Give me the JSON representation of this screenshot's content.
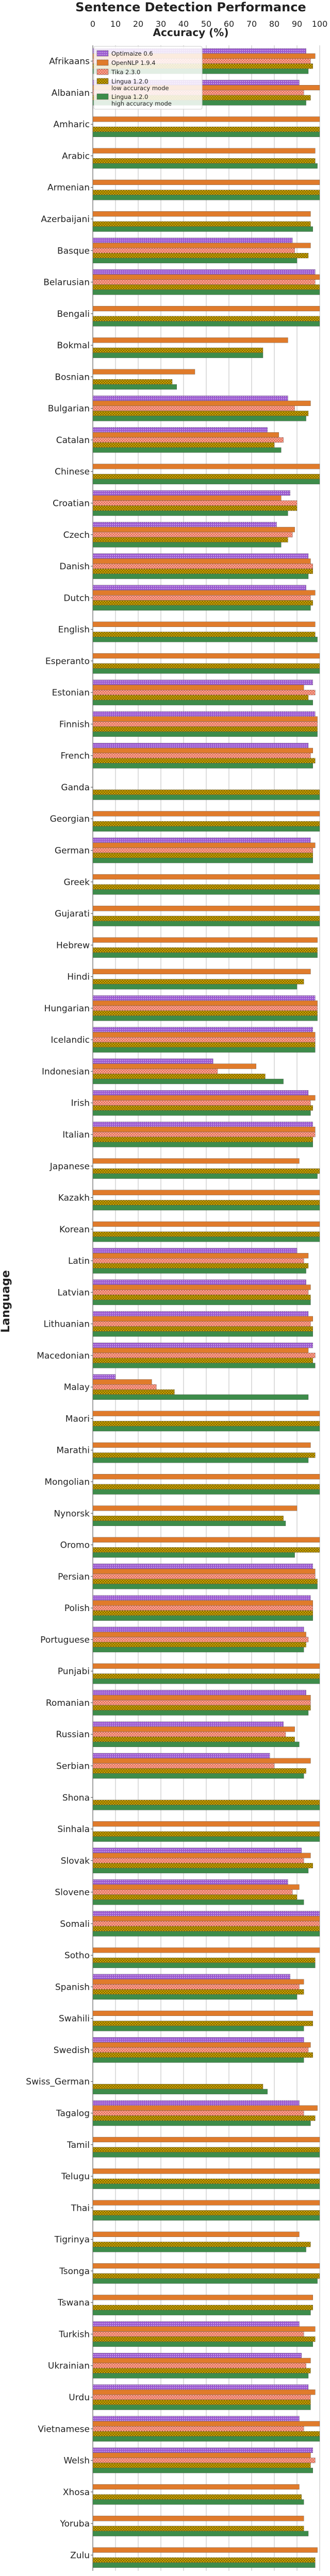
{
  "chart_data": {
    "type": "bar",
    "orientation": "horizontal",
    "title": "Sentence Detection Performance",
    "xlabel": "Accuracy (%)",
    "ylabel": "Language",
    "xlim": [
      0,
      100
    ],
    "xticks": [
      0,
      10,
      20,
      30,
      40,
      50,
      60,
      70,
      80,
      90,
      100
    ],
    "grid": true,
    "legend_position": "top-left",
    "categories": [
      "Afrikaans",
      "Albanian",
      "Amharic",
      "Arabic",
      "Armenian",
      "Azerbaijani",
      "Basque",
      "Belarusian",
      "Bengali",
      "Bokmal",
      "Bosnian",
      "Bulgarian",
      "Catalan",
      "Chinese",
      "Croatian",
      "Czech",
      "Danish",
      "Dutch",
      "English",
      "Esperanto",
      "Estonian",
      "Finnish",
      "French",
      "Ganda",
      "Georgian",
      "German",
      "Greek",
      "Gujarati",
      "Hebrew",
      "Hindi",
      "Hungarian",
      "Icelandic",
      "Indonesian",
      "Irish",
      "Italian",
      "Japanese",
      "Kazakh",
      "Korean",
      "Latin",
      "Latvian",
      "Lithuanian",
      "Macedonian",
      "Malay",
      "Maori",
      "Marathi",
      "Mongolian",
      "Nynorsk",
      "Oromo",
      "Persian",
      "Polish",
      "Portuguese",
      "Punjabi",
      "Romanian",
      "Russian",
      "Serbian",
      "Shona",
      "Sinhala",
      "Slovak",
      "Slovene",
      "Somali",
      "Sotho",
      "Spanish",
      "Swahili",
      "Swedish",
      "Swiss_German",
      "Tagalog",
      "Tamil",
      "Telugu",
      "Thai",
      "Tigrinya",
      "Tsonga",
      "Tswana",
      "Turkish",
      "Ukrainian",
      "Urdu",
      "Vietnamese",
      "Welsh",
      "Xhosa",
      "Yoruba",
      "Zulu"
    ],
    "series": [
      {
        "name": "Optimaize 0.6",
        "color": "#9b59d0",
        "pattern": "dots",
        "values": [
          94,
          91,
          0,
          0,
          0,
          0,
          88,
          98,
          0,
          0,
          0,
          86,
          77,
          0,
          87,
          81,
          95,
          94,
          0,
          0,
          97,
          98,
          95,
          0,
          0,
          96,
          0,
          0,
          0,
          0,
          98,
          97,
          53,
          95,
          97,
          0,
          0,
          0,
          90,
          94,
          95,
          97,
          10,
          0,
          0,
          0,
          0,
          0,
          97,
          96,
          93,
          0,
          94,
          84,
          78,
          0,
          0,
          92,
          86,
          100,
          0,
          87,
          0,
          93,
          0,
          91,
          0,
          0,
          0,
          0,
          0,
          0,
          91,
          92,
          95,
          91,
          97,
          0,
          0,
          0
        ]
      },
      {
        "name": "OpenNLP 1.9.4",
        "color": "#e07b2b",
        "pattern": "none",
        "values": [
          98,
          100,
          100,
          98,
          100,
          96,
          96,
          100,
          100,
          86,
          45,
          96,
          82,
          100,
          83,
          89,
          96,
          98,
          98,
          100,
          93,
          99,
          97,
          0,
          100,
          98,
          100,
          100,
          99,
          96,
          99,
          98,
          72,
          98,
          98,
          91,
          100,
          100,
          95,
          96,
          97,
          95,
          26,
          100,
          96,
          100,
          90,
          100,
          98,
          97,
          94,
          100,
          96,
          89,
          96,
          0,
          100,
          96,
          91,
          100,
          100,
          93,
          97,
          96,
          0,
          99,
          100,
          100,
          100,
          91,
          100,
          97,
          98,
          96,
          98,
          100,
          96,
          91,
          93,
          99
        ]
      },
      {
        "name": "Tika 2.3.0",
        "color": "#e8644a",
        "pattern": "crosshatch",
        "values": [
          96,
          93,
          0,
          0,
          0,
          0,
          89,
          98,
          0,
          0,
          0,
          89,
          84,
          0,
          90,
          88,
          97,
          96,
          0,
          0,
          98,
          99,
          96,
          0,
          0,
          97,
          0,
          0,
          0,
          0,
          99,
          98,
          55,
          96,
          98,
          0,
          0,
          0,
          93,
          95,
          96,
          98,
          28,
          0,
          0,
          0,
          0,
          0,
          98,
          97,
          95,
          0,
          96,
          85,
          80,
          0,
          0,
          93,
          88,
          100,
          0,
          91,
          0,
          95,
          0,
          93,
          0,
          0,
          0,
          0,
          0,
          0,
          93,
          94,
          96,
          93,
          98,
          0,
          0,
          0
        ]
      },
      {
        "name": "Lingua 1.2.0\nlow accuracy mode",
        "color": "#d4a800",
        "pattern": "crosshatch",
        "values": [
          97,
          96,
          100,
          98,
          100,
          96,
          95,
          100,
          100,
          75,
          35,
          95,
          80,
          100,
          90,
          86,
          97,
          97,
          98,
          100,
          95,
          99,
          98,
          100,
          100,
          97,
          100,
          100,
          99,
          93,
          99,
          98,
          76,
          97,
          97,
          100,
          100,
          100,
          95,
          96,
          97,
          97,
          36,
          100,
          98,
          100,
          84,
          100,
          99,
          97,
          94,
          100,
          96,
          89,
          94,
          100,
          100,
          97,
          90,
          100,
          98,
          93,
          97,
          97,
          75,
          98,
          100,
          100,
          100,
          96,
          100,
          97,
          98,
          96,
          96,
          100,
          96,
          92,
          93,
          98
        ]
      },
      {
        "name": "Lingua 1.2.0\nhigh accuracy mode",
        "color": "#3d8c4a",
        "pattern": "none",
        "values": [
          95,
          94,
          100,
          99,
          100,
          97,
          90,
          100,
          100,
          75,
          37,
          94,
          83,
          100,
          86,
          83,
          95,
          96,
          99,
          100,
          97,
          99,
          97,
          100,
          100,
          97,
          100,
          100,
          99,
          90,
          99,
          98,
          84,
          96,
          97,
          99,
          100,
          100,
          94,
          96,
          97,
          98,
          95,
          100,
          95,
          100,
          85,
          89,
          99,
          97,
          93,
          100,
          95,
          91,
          93,
          100,
          100,
          95,
          93,
          100,
          98,
          90,
          93,
          93,
          77,
          96,
          100,
          100,
          100,
          94,
          99,
          96,
          97,
          95,
          96,
          100,
          97,
          93,
          95,
          98
        ]
      }
    ]
  }
}
